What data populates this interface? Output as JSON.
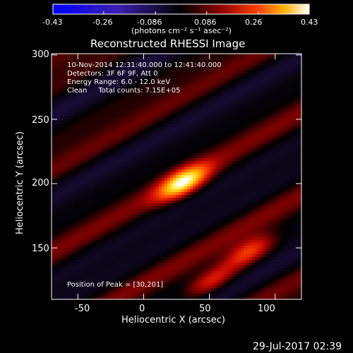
{
  "colorbar": {
    "ticks": [
      "-0.43",
      "-0.26",
      "-0.086",
      "0.086",
      "0.26",
      "0.43"
    ],
    "unit_label": "(photons cm⁻² s⁻¹ asec⁻²)",
    "range": [
      -0.43,
      0.43
    ]
  },
  "chart_data": {
    "type": "heatmap",
    "title": "Reconstructed RHESSI Image",
    "xlabel": "Heliocentric X (arcsec)",
    "ylabel": "Heliocentric Y (arcsec)",
    "xlim": [
      -70,
      120
    ],
    "ylim": [
      110,
      301
    ],
    "xticks": [
      -50,
      0,
      50,
      100
    ],
    "yticks": [
      150,
      200,
      250,
      300
    ],
    "annotation_lines": [
      "10-Nov-2014 12:31:40.000 to 12:41:40.000",
      "Detectors: 3F 6F 9F, Att 0",
      "Energy Range: 6.0 - 12.0 keV",
      "Clean     Total counts: 7.15E+05"
    ],
    "peak_text": "Position of Peak = [30,201]",
    "peak": {
      "x": 30,
      "y": 201,
      "value": 0.43
    },
    "sources": [
      {
        "x": 30,
        "y": 201,
        "value": 0.43
      },
      {
        "x": 80,
        "y": 147,
        "value": 0.24
      },
      {
        "x": 52,
        "y": 125,
        "value": 0.2
      }
    ],
    "colormap": "blue-purple-red-yellow-white"
  },
  "footer_date": "29-Jul-2017 02:39"
}
